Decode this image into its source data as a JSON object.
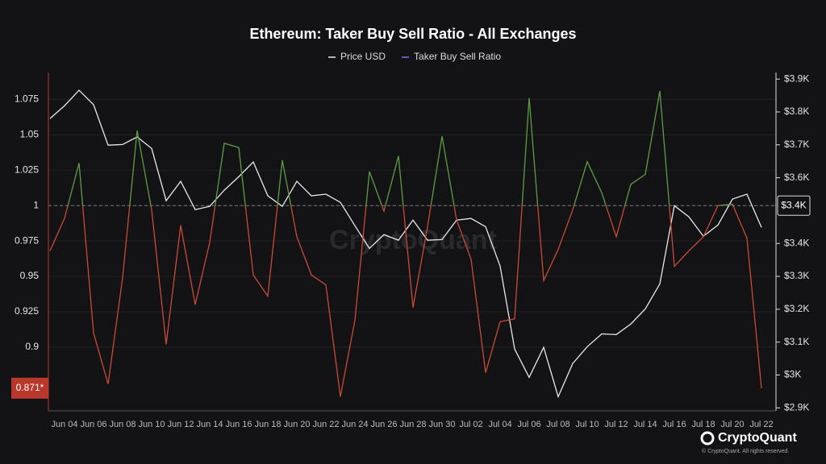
{
  "chart_data": {
    "type": "line",
    "title": "Ethereum: Taker Buy Sell Ratio - All Exchanges",
    "watermark": "CryptoQuant",
    "brand": "CryptoQuant",
    "copyright": "© CryptoQuant. All rights reserved.",
    "categories": [
      null,
      "Jun 04",
      null,
      "Jun 06",
      null,
      "Jun 08",
      null,
      "Jun 10",
      null,
      "Jun 12",
      null,
      "Jun 14",
      null,
      "Jun 16",
      null,
      "Jun 18",
      null,
      "Jun 20",
      null,
      "Jun 22",
      null,
      "Jun 24",
      null,
      "Jun 26",
      null,
      "Jun 28",
      null,
      "Jun 30",
      null,
      "Jul 02",
      null,
      "Jul 04",
      null,
      "Jul 06",
      null,
      "Jul 08",
      null,
      "Jul 10",
      null,
      "Jul 12",
      null,
      "Jul 14",
      null,
      "Jul 16",
      null,
      "Jul 18",
      null,
      "Jul 20",
      null,
      "Jul 22"
    ],
    "series": [
      {
        "name": "Price USD",
        "color": "#e8e8e8",
        "axis": "y2",
        "values": [
          3780,
          3819,
          3866,
          3822,
          3699,
          3701,
          3724,
          3689,
          3530,
          3589,
          3503,
          3513,
          3562,
          3603,
          3648,
          3545,
          3513,
          3589,
          3545,
          3550,
          3525,
          3454,
          3385,
          3427,
          3410,
          3471,
          3410,
          3412,
          3471,
          3476,
          3451,
          3331,
          3079,
          2993,
          3084,
          2934,
          3035,
          3086,
          3125,
          3123,
          3155,
          3201,
          3277,
          3515,
          3481,
          3422,
          3456,
          3535,
          3550,
          3449
        ],
        "value_labels": [
          null,
          null,
          null,
          null,
          null,
          null,
          null,
          null,
          null,
          null,
          null,
          null,
          null,
          null,
          null,
          null,
          null,
          null,
          null,
          null,
          null,
          null,
          null,
          null,
          null,
          null,
          null,
          null,
          null,
          null,
          null,
          null,
          null,
          null,
          null,
          null,
          null,
          null,
          null,
          null,
          null,
          null,
          null,
          null,
          null,
          null,
          null,
          null,
          null,
          "$3.4K"
        ]
      },
      {
        "name": "Taker Buy Sell Ratio",
        "color": "#7d70f5",
        "above_color": "#5e9c45",
        "below_color": "#c94a35",
        "axis": "y",
        "values": [
          0.968,
          0.991,
          1.03,
          0.91,
          0.874,
          0.949,
          1.053,
          0.997,
          0.902,
          0.986,
          0.93,
          0.974,
          1.044,
          1.041,
          0.951,
          0.936,
          1.032,
          0.978,
          0.951,
          0.944,
          0.865,
          0.919,
          1.024,
          0.996,
          1.035,
          0.928,
          0.985,
          1.049,
          0.99,
          0.962,
          0.882,
          0.918,
          0.92,
          1.076,
          0.947,
          0.969,
          0.997,
          1.031,
          1.009,
          0.978,
          1.015,
          1.022,
          1.081,
          0.957,
          0.968,
          0.978,
          1.0,
          1.001,
          0.977,
          0.871
        ],
        "value_labels": [
          null,
          null,
          null,
          null,
          null,
          null,
          null,
          null,
          null,
          null,
          null,
          null,
          null,
          null,
          null,
          null,
          null,
          null,
          null,
          null,
          null,
          null,
          null,
          null,
          null,
          null,
          null,
          null,
          null,
          null,
          null,
          null,
          null,
          null,
          null,
          null,
          null,
          null,
          null,
          null,
          null,
          null,
          null,
          null,
          null,
          null,
          null,
          null,
          null,
          "0.871*"
        ]
      }
    ],
    "reference_line": 1,
    "ylim": [
      0.855,
      1.094
    ],
    "yticks": [
      0.9,
      0.925,
      0.95,
      0.975,
      1,
      1.025,
      1.05,
      1.075
    ],
    "y2lim": [
      2891,
      3920
    ],
    "y2ticks": [
      {
        "value": 2900,
        "label": "$2.9K"
      },
      {
        "value": 3000,
        "label": "$3K"
      },
      {
        "value": 3100,
        "label": "$3.1K"
      },
      {
        "value": 3200,
        "label": "$3.2K"
      },
      {
        "value": 3300,
        "label": "$3.3K"
      },
      {
        "value": 3400,
        "label": "$3.4K"
      },
      {
        "value": 3600,
        "label": "$3.6K"
      },
      {
        "value": 3700,
        "label": "$3.7K"
      },
      {
        "value": 3800,
        "label": "$3.8K"
      },
      {
        "value": 3900,
        "label": "$3.9K"
      }
    ],
    "grid": true
  }
}
